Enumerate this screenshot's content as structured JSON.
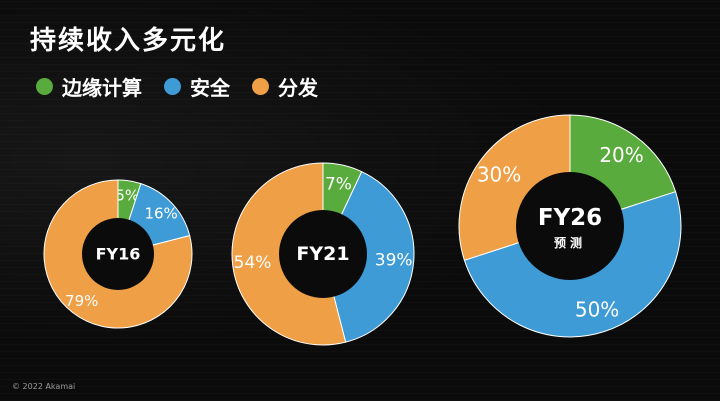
{
  "title": "持续收入多元化",
  "legend": [
    {
      "label": "边缘计算",
      "color": "#5aab3d"
    },
    {
      "label": "安全",
      "color": "#3e9bd6"
    },
    {
      "label": "分发",
      "color": "#ef9f45"
    }
  ],
  "footer": "© 2022 Akamai",
  "chart_data": [
    {
      "type": "pie",
      "center_label": "FY16",
      "slices": [
        {
          "series": "边缘计算",
          "value": 5,
          "label": "5%"
        },
        {
          "series": "安全",
          "value": 16,
          "label": "16%"
        },
        {
          "series": "分发",
          "value": 79,
          "label": "79%"
        }
      ]
    },
    {
      "type": "pie",
      "center_label": "FY21",
      "slices": [
        {
          "series": "边缘计算",
          "value": 7,
          "label": "7%"
        },
        {
          "series": "安全",
          "value": 39,
          "label": "39%"
        },
        {
          "series": "分发",
          "value": 54,
          "label": "54%"
        }
      ]
    },
    {
      "type": "pie",
      "center_label": "FY26",
      "center_sublabel": "预测",
      "slices": [
        {
          "series": "边缘计算",
          "value": 20,
          "label": "20%"
        },
        {
          "series": "安全",
          "value": 50,
          "label": "50%"
        },
        {
          "series": "分发",
          "value": 30,
          "label": "30%"
        }
      ]
    }
  ]
}
